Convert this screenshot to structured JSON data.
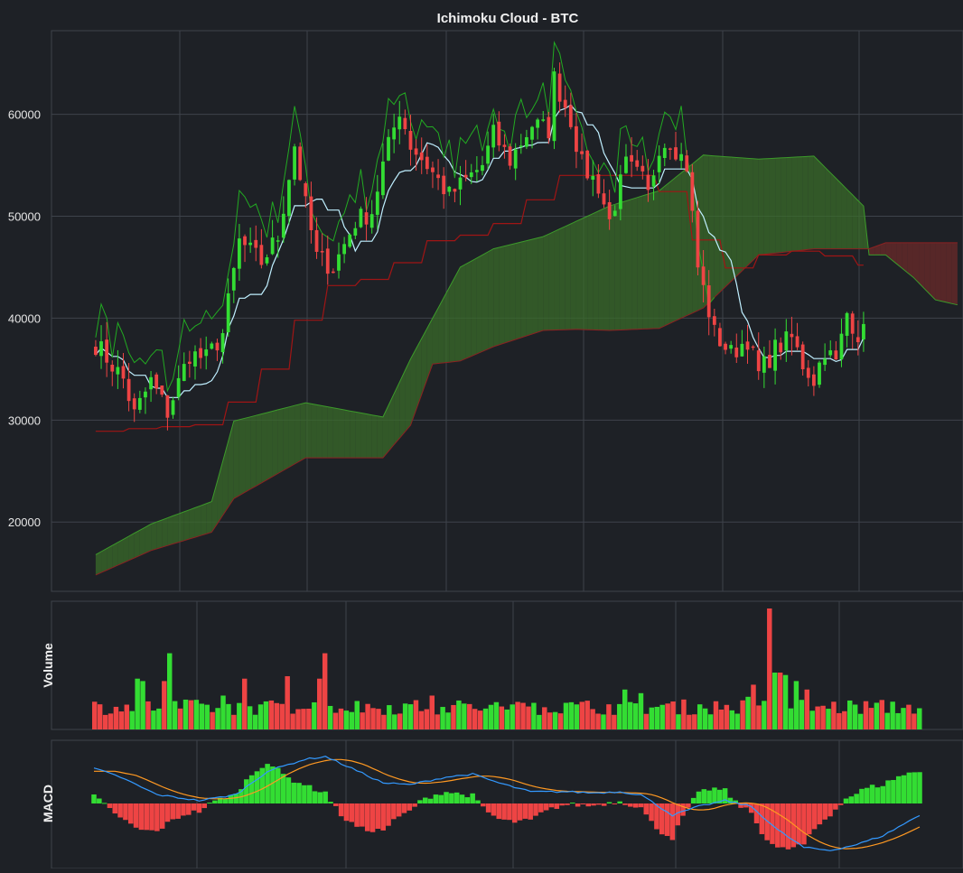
{
  "chart_data": [
    {
      "type": "candlestick",
      "title": "Ichimoku Cloud - BTC",
      "ylabel": "",
      "ylim": [
        13200,
        68200
      ],
      "y_ticks": [
        "20000",
        "30000",
        "40000",
        "50000",
        "60000"
      ],
      "x_index_range": [
        -8,
        157
      ],
      "grid": true,
      "colors": {
        "up": "#33dd33",
        "down": "#ee4444",
        "tenkan": "#bfefff",
        "kijun": "#a01515",
        "chikou": "#22aa22",
        "cloud_bull": "#3a6b2a",
        "cloud_bear": "#6b2a2a"
      },
      "anchors": [
        {
          "i": 0,
          "close": 37500,
          "kijun": 28900,
          "span_a": 16800,
          "span_b": 14800
        },
        {
          "i": 5,
          "close": 34000
        },
        {
          "i": 7,
          "close": 30500,
          "kijun": 29200
        },
        {
          "i": 10,
          "close": 33800,
          "span_a": 19800,
          "span_b": 17200
        },
        {
          "i": 13,
          "close": 30800
        },
        {
          "i": 17,
          "close": 36500
        },
        {
          "i": 20,
          "close": 36000,
          "kijun": 29600
        },
        {
          "i": 21,
          "span_a": 22000,
          "span_b": 19000
        },
        {
          "i": 23,
          "close": 38500
        },
        {
          "i": 25,
          "span_a": 29900,
          "span_b": 22300
        },
        {
          "i": 26,
          "close": 47500
        },
        {
          "i": 30,
          "close": 45500,
          "kijun": 35000
        },
        {
          "i": 33,
          "close": 48000
        },
        {
          "i": 36,
          "close": 57000
        },
        {
          "i": 38,
          "close": 51000,
          "span_a": 31700,
          "span_b": 26300
        },
        {
          "i": 40,
          "close": 46000,
          "kijun": 43000
        },
        {
          "i": 43,
          "close": 45000
        },
        {
          "i": 47,
          "close": 49500
        },
        {
          "i": 50,
          "close": 50500,
          "kijun": 44000
        },
        {
          "i": 52,
          "close": 55000,
          "span_a": 30300,
          "span_b": 26300
        },
        {
          "i": 55,
          "close": 60500
        },
        {
          "i": 57,
          "close": 57000,
          "span_a": 36000,
          "span_b": 29500
        },
        {
          "i": 60,
          "close": 55000,
          "kijun": 47600
        },
        {
          "i": 61,
          "span_a": 40000,
          "span_b": 35500
        },
        {
          "i": 64,
          "close": 52000
        },
        {
          "i": 66,
          "span_a": 45000,
          "span_b": 35800
        },
        {
          "i": 70,
          "close": 55000,
          "kijun": 48500
        },
        {
          "i": 72,
          "close": 58000,
          "span_a": 46800,
          "span_b": 37200
        },
        {
          "i": 75,
          "close": 55500
        },
        {
          "i": 79,
          "close": 59000,
          "kijun": 52000
        },
        {
          "i": 81,
          "span_a": 48000,
          "span_b": 38800
        },
        {
          "i": 82,
          "close": 58500
        },
        {
          "i": 83,
          "close": 63500,
          "kijun": 54000
        },
        {
          "i": 86,
          "close": 59500
        },
        {
          "i": 87,
          "span_a": 49500,
          "span_b": 38900
        },
        {
          "i": 88,
          "close": 55000
        },
        {
          "i": 91,
          "close": 53000
        },
        {
          "i": 93,
          "close": 49500,
          "span_a": 51000,
          "span_b": 38800
        },
        {
          "i": 96,
          "close": 55000
        },
        {
          "i": 99,
          "close": 53500
        },
        {
          "i": 100,
          "close": 52000,
          "kijun": 54000
        },
        {
          "i": 102,
          "close": 57000,
          "span_a": 52500,
          "span_b": 39000
        },
        {
          "i": 104,
          "close": 57500
        },
        {
          "i": 107,
          "close": 55000
        },
        {
          "i": 109,
          "close": 45000
        },
        {
          "i": 110,
          "span_a": 56000,
          "span_b": 41000
        },
        {
          "i": 112,
          "close": 38500,
          "kijun": 44500
        },
        {
          "i": 115,
          "close": 36500
        },
        {
          "i": 118,
          "close": 38000
        },
        {
          "i": 120,
          "close": 34500,
          "kijun": 46200,
          "span_a": 55600,
          "span_b": 46200
        },
        {
          "i": 123,
          "close": 37000
        },
        {
          "i": 126,
          "close": 38000
        },
        {
          "i": 128,
          "close": 35500,
          "kijun": 46700
        },
        {
          "i": 130,
          "close": 34000,
          "span_a": 55900,
          "span_b": 46800
        },
        {
          "i": 132,
          "close": 37000
        },
        {
          "i": 134,
          "close": 35500
        },
        {
          "i": 136,
          "close": 40500
        },
        {
          "i": 138,
          "close": 38500,
          "kijun": 45200
        },
        {
          "i": 139,
          "span_a": 51000,
          "span_b": 46800
        },
        {
          "i": 140,
          "span_a": 46200,
          "span_b": 46800
        },
        {
          "i": 143,
          "span_a": 46200,
          "span_b": 47400
        },
        {
          "i": 148,
          "span_a": 44000,
          "span_b": 47400
        },
        {
          "i": 152,
          "span_a": 41800,
          "span_b": 47400
        },
        {
          "i": 156,
          "span_a": 41300,
          "span_b": 47400
        }
      ],
      "last_candle_index": 139,
      "cloud_end_index": 156
    },
    {
      "type": "bar",
      "ylabel": "Volume",
      "note_values": "relative volume per candle, 0-1 scale",
      "spikes": [
        {
          "i": 8,
          "value": 0.42
        },
        {
          "i": 9,
          "value": 0.4
        },
        {
          "i": 13,
          "value": 0.4
        },
        {
          "i": 14,
          "value": 0.63
        },
        {
          "i": 24,
          "value": 0.28
        },
        {
          "i": 28,
          "value": 0.42
        },
        {
          "i": 36,
          "value": 0.44
        },
        {
          "i": 42,
          "value": 0.42
        },
        {
          "i": 43,
          "value": 0.63
        },
        {
          "i": 63,
          "value": 0.28
        },
        {
          "i": 82,
          "value": 0.22
        },
        {
          "i": 99,
          "value": 0.33
        },
        {
          "i": 102,
          "value": 0.3
        },
        {
          "i": 122,
          "value": 0.27
        },
        {
          "i": 123,
          "value": 0.37
        },
        {
          "i": 126,
          "value": 1.0
        },
        {
          "i": 127,
          "value": 0.47
        },
        {
          "i": 128,
          "value": 0.47
        },
        {
          "i": 129,
          "value": 0.45
        },
        {
          "i": 131,
          "value": 0.4
        },
        {
          "i": 133,
          "value": 0.33
        }
      ]
    },
    {
      "type": "line",
      "ylabel": "MACD",
      "series": [
        {
          "name": "",
          "color": "#3399ff"
        },
        {
          "name": "",
          "color": "#ff9922"
        }
      ],
      "ylim": [
        -1,
        1
      ],
      "macd_anchors": [
        {
          "i": 0,
          "v": 0.6
        },
        {
          "i": 5,
          "v": 0.45
        },
        {
          "i": 12,
          "v": 0.15
        },
        {
          "i": 20,
          "v": 0.05
        },
        {
          "i": 27,
          "v": 0.15
        },
        {
          "i": 33,
          "v": 0.55
        },
        {
          "i": 40,
          "v": 0.75
        },
        {
          "i": 44,
          "v": 0.8
        },
        {
          "i": 49,
          "v": 0.6
        },
        {
          "i": 55,
          "v": 0.35
        },
        {
          "i": 60,
          "v": 0.32
        },
        {
          "i": 67,
          "v": 0.45
        },
        {
          "i": 72,
          "v": 0.5
        },
        {
          "i": 77,
          "v": 0.35
        },
        {
          "i": 83,
          "v": 0.2
        },
        {
          "i": 90,
          "v": 0.2
        },
        {
          "i": 95,
          "v": 0.18
        },
        {
          "i": 100,
          "v": 0.2
        },
        {
          "i": 104,
          "v": 0.15
        },
        {
          "i": 110,
          "v": -0.2
        },
        {
          "i": 115,
          "v": -0.05
        },
        {
          "i": 120,
          "v": 0.05
        },
        {
          "i": 125,
          "v": -0.05
        },
        {
          "i": 130,
          "v": -0.45
        },
        {
          "i": 135,
          "v": -0.75
        },
        {
          "i": 140,
          "v": -0.8
        },
        {
          "i": 145,
          "v": -0.7
        },
        {
          "i": 150,
          "v": -0.55
        },
        {
          "i": 155,
          "v": -0.3
        },
        {
          "i": 157,
          "v": -0.2
        }
      ],
      "signal_lag": 4,
      "hist_scale": 0.55
    }
  ]
}
